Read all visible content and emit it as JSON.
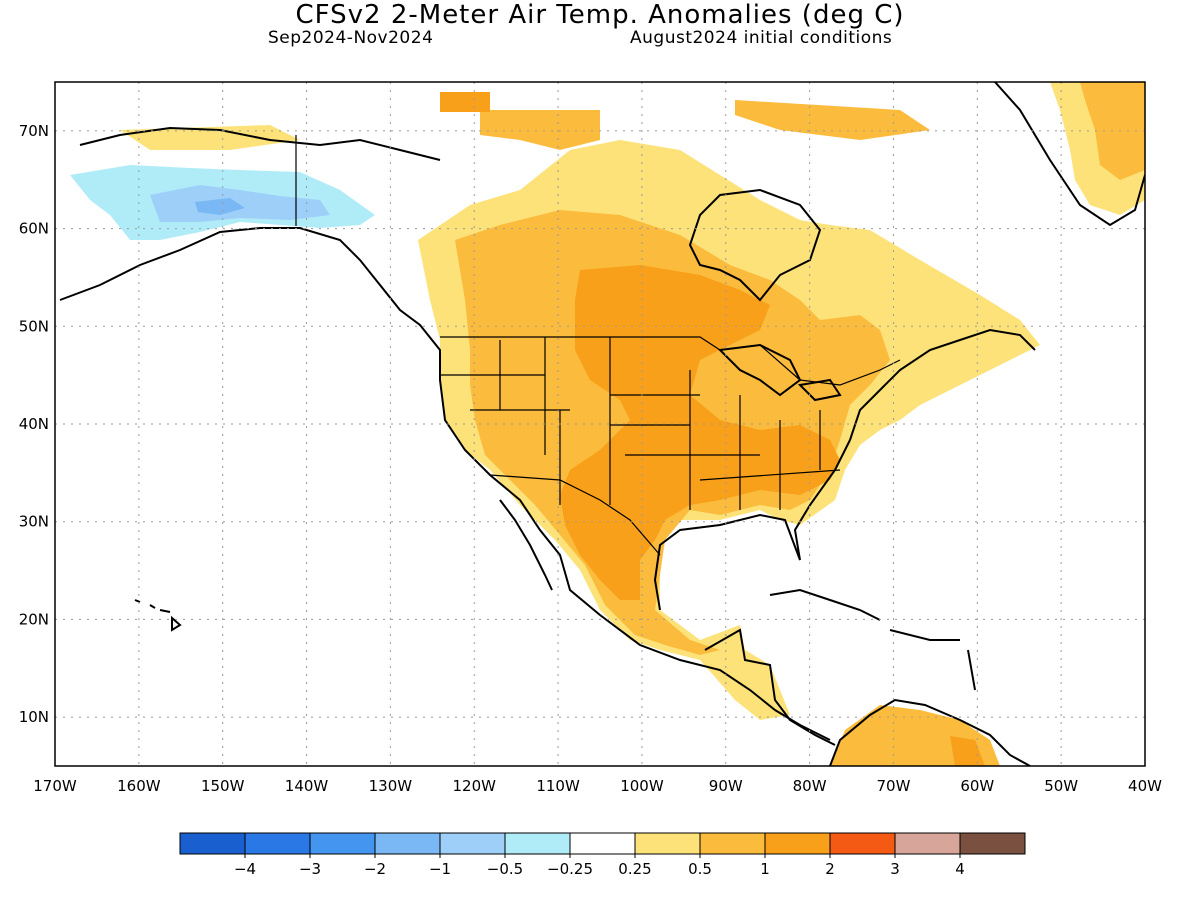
{
  "title": "CFSv2 2-Meter Air Temp. Anomalies (deg C)",
  "subtitle_left": "Sep2024-Nov2024",
  "subtitle_right": "August2024 initial conditions",
  "map": {
    "lon_range": [
      -170,
      -40
    ],
    "lat_range": [
      5,
      75
    ],
    "lat_ticks": [
      "70N",
      "60N",
      "50N",
      "40N",
      "30N",
      "20N",
      "10N"
    ],
    "lon_ticks": [
      "170W",
      "160W",
      "150W",
      "140W",
      "130W",
      "120W",
      "110W",
      "100W",
      "90W",
      "80W",
      "70W",
      "60W",
      "50W",
      "40W"
    ]
  },
  "colorbar": {
    "colors": [
      "#1a5fd0",
      "#2a78e6",
      "#4495f0",
      "#79b7f5",
      "#9dcff8",
      "#b0ecf8",
      "#ffffff",
      "#fde27a",
      "#fbbb3c",
      "#f8a01a",
      "#f45a14",
      "#d8a59a",
      "#7a5141"
    ],
    "labels": [
      "-4",
      "-3",
      "-2",
      "-1",
      "-0.5",
      "-0.25",
      "0.25",
      "0.5",
      "1",
      "2",
      "3",
      "4"
    ]
  }
}
